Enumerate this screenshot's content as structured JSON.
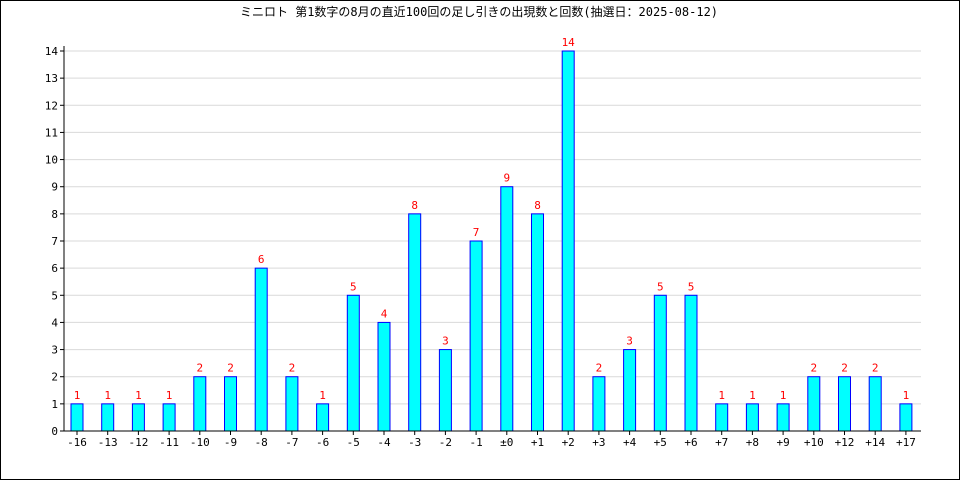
{
  "chart_data": {
    "type": "bar",
    "title": "ミニロト 第1数字の8月の直近100回の足し引きの出現数と回数(抽選日：2025-08-12)",
    "xlabel": "",
    "ylabel": "",
    "categories": [
      "-16",
      "-13",
      "-12",
      "-11",
      "-10",
      "-9",
      "-8",
      "-7",
      "-6",
      "-5",
      "-4",
      "-3",
      "-2",
      "-1",
      "±0",
      "+1",
      "+2",
      "+3",
      "+4",
      "+5",
      "+6",
      "+7",
      "+8",
      "+9",
      "+10",
      "+12",
      "+14",
      "+17"
    ],
    "values": [
      1,
      1,
      1,
      1,
      2,
      2,
      6,
      2,
      1,
      5,
      4,
      8,
      3,
      7,
      9,
      8,
      14,
      2,
      3,
      5,
      5,
      1,
      1,
      1,
      2,
      2,
      2,
      1
    ],
    "ylim": [
      0,
      14
    ],
    "yticks": [
      "0",
      "1",
      "2",
      "3",
      "4",
      "5",
      "6",
      "7",
      "8",
      "9",
      "10",
      "11",
      "12",
      "13",
      "14"
    ],
    "grid": true,
    "colors": {
      "bar_fill": "#00ffff",
      "bar_stroke": "#0000ff",
      "data_label": "#ff0000",
      "grid": "#d9d9d9",
      "axis": "#000000"
    }
  }
}
